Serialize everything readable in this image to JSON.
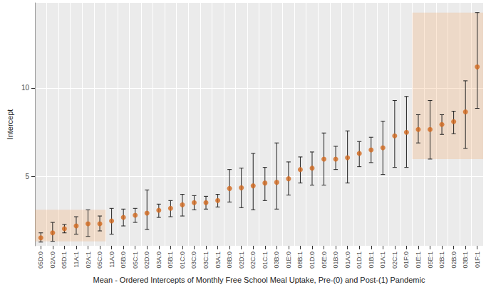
{
  "chart_data": {
    "type": "scatter",
    "x_label": "Mean - Ordered Intercepts of Monthly Free School Meal Uptake, Pre-(0) and Post-(1) Pandemic",
    "y_label": "Intercept",
    "categories": [
      "05D:0",
      "02A:0",
      "05D:1",
      "11A:1",
      "02A:1",
      "05C:0",
      "11A:0",
      "05B:0",
      "05C:1",
      "02D:0",
      "03A:0",
      "05B:1",
      "01C:0",
      "03C:0",
      "03C:1",
      "03A:1",
      "08B:0",
      "02D:1",
      "02C:0",
      "01C:1",
      "03B:0",
      "01E:0",
      "08B:1",
      "01D:0",
      "05E:0",
      "01B:0",
      "01A:0",
      "01D:1",
      "01B:1",
      "01A:1",
      "02C:1",
      "01F:0",
      "01E:1",
      "05E:1",
      "02B:1",
      "02B:0",
      "03B:1",
      "01F:1"
    ],
    "values": [
      1.55,
      1.83,
      2.06,
      2.22,
      2.34,
      2.34,
      2.5,
      2.7,
      2.82,
      2.94,
      3.1,
      3.21,
      3.41,
      3.53,
      3.53,
      3.65,
      4.33,
      4.37,
      4.48,
      4.64,
      4.68,
      4.88,
      5.4,
      5.48,
      5.99,
      5.99,
      6.07,
      6.31,
      6.51,
      6.63,
      7.3,
      7.5,
      7.66,
      7.66,
      7.94,
      8.1,
      8.65,
      11.19
    ],
    "error_low": [
      1.31,
      1.35,
      1.83,
      1.75,
      1.63,
      1.94,
      1.75,
      2.22,
      2.42,
      2.02,
      2.7,
      2.74,
      2.78,
      3.13,
      3.17,
      3.29,
      3.57,
      3.25,
      3.13,
      3.65,
      3.17,
      3.96,
      4.64,
      4.52,
      4.52,
      5.4,
      4.64,
      5.56,
      5.79,
      5.12,
      5.52,
      5.52,
      6.9,
      5.99,
      7.38,
      7.42,
      6.59,
      8.85
    ],
    "error_high": [
      1.83,
      2.42,
      2.3,
      2.74,
      3.13,
      2.78,
      3.21,
      3.17,
      3.21,
      4.25,
      3.45,
      3.65,
      4.0,
      3.93,
      3.89,
      4.0,
      5.4,
      5.48,
      6.31,
      5.52,
      6.9,
      5.83,
      6.11,
      6.39,
      7.46,
      6.71,
      7.58,
      6.98,
      7.22,
      8.13,
      9.29,
      9.52,
      8.49,
      9.29,
      8.49,
      8.69,
      10.4,
      14.25
    ],
    "highlights": [
      {
        "from": "05D:0",
        "to": "05C:0",
        "ymin": 1.35,
        "ymax": 3.13
      },
      {
        "from": "01E:1",
        "to": "01F:1",
        "ymin": 5.99,
        "ymax": 14.25
      }
    ],
    "color": "#d2691e",
    "ylim": [
      1.1,
      14.8
    ],
    "yticks": [
      5,
      10
    ],
    "grid": true
  }
}
